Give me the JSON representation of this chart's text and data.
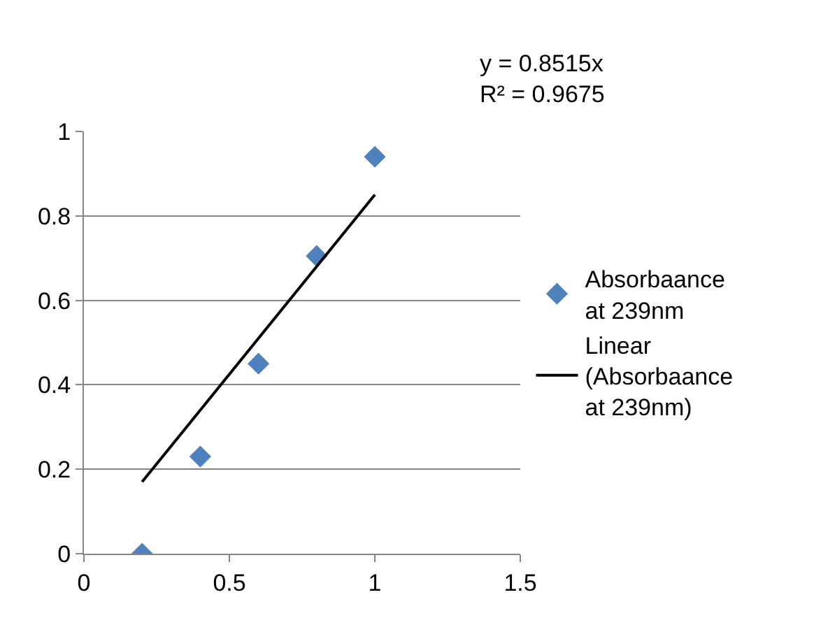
{
  "chart_data": {
    "type": "scatter",
    "x": [
      0.2,
      0.4,
      0.6,
      0.8,
      1.0
    ],
    "series": [
      {
        "name": "Absorbaance at 239nm",
        "type": "scatter",
        "color": "#4f81bd",
        "marker": "diamond",
        "values": [
          0,
          0.23,
          0.45,
          0.705,
          0.94
        ]
      },
      {
        "name": "Linear (Absorbaance at 239nm)",
        "type": "line",
        "color": "#000000",
        "marker": "none",
        "line_style": "solid",
        "x": [
          0.2,
          1.0
        ],
        "values": [
          0.17,
          0.85
        ]
      }
    ],
    "xlim": [
      0,
      1.5
    ],
    "xticks": [
      0,
      0.5,
      1,
      1.5
    ],
    "ylim": [
      0,
      1
    ],
    "yticks": [
      0,
      0.2,
      0.4,
      0.6,
      0.8,
      1
    ],
    "grid": "y",
    "legend": "right",
    "annotations": [
      "y = 0.8515x",
      "R² = 0.9675"
    ]
  }
}
